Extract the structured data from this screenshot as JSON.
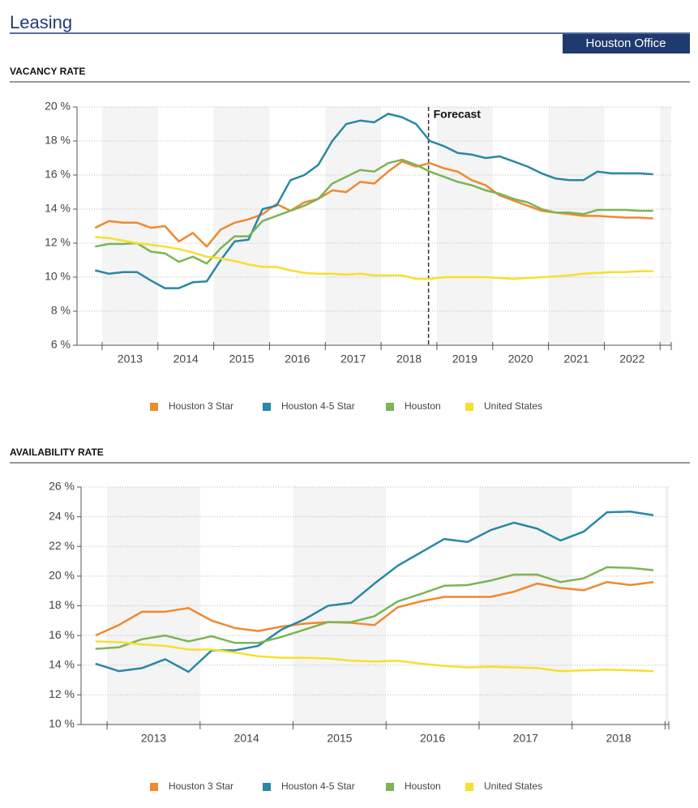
{
  "header": {
    "title": "Leasing",
    "badge": "Houston Office"
  },
  "chart_data": [
    {
      "type": "line",
      "title": "VACANCY RATE",
      "x": [
        2012.875,
        2013.125,
        2013.375,
        2013.625,
        2013.875,
        2014.125,
        2014.375,
        2014.625,
        2014.875,
        2015.125,
        2015.375,
        2015.625,
        2015.875,
        2016.125,
        2016.375,
        2016.625,
        2016.875,
        2017.125,
        2017.375,
        2017.625,
        2017.875,
        2018.125,
        2018.375,
        2018.625,
        2018.875,
        2019.125,
        2019.375,
        2019.625,
        2019.875,
        2020.125,
        2020.375,
        2020.625,
        2020.875,
        2021.125,
        2021.375,
        2021.625,
        2021.875,
        2022.125,
        2022.375,
        2022.625,
        2022.875
      ],
      "xlim": [
        2012.55,
        2023.2
      ],
      "xticks": [
        {
          "value": 2013.5,
          "label": "2013"
        },
        {
          "value": 2014.5,
          "label": "2014"
        },
        {
          "value": 2015.5,
          "label": "2015"
        },
        {
          "value": 2016.5,
          "label": "2016"
        },
        {
          "value": 2017.5,
          "label": "2017"
        },
        {
          "value": 2018.5,
          "label": "2018"
        },
        {
          "value": 2019.5,
          "label": "2019"
        },
        {
          "value": 2020.5,
          "label": "2020"
        },
        {
          "value": 2021.5,
          "label": "2021"
        },
        {
          "value": 2022.5,
          "label": "2022"
        }
      ],
      "ylim": [
        6,
        20
      ],
      "yticks": [
        {
          "value": 6,
          "label": "6 %"
        },
        {
          "value": 8,
          "label": "8 %"
        },
        {
          "value": 10,
          "label": "10 %"
        },
        {
          "value": 12,
          "label": "12 %"
        },
        {
          "value": 14,
          "label": "14 %"
        },
        {
          "value": 16,
          "label": "16 %"
        },
        {
          "value": 18,
          "label": "18 %"
        },
        {
          "value": 20,
          "label": "20 %"
        }
      ],
      "grid": true,
      "annotations": [
        {
          "text": "Forecast",
          "x": 2018.85
        }
      ],
      "series": [
        {
          "name": "Houston 3 Star",
          "color": "#f0892f",
          "values": [
            12.9,
            13.3,
            13.2,
            13.2,
            12.9,
            13.0,
            12.1,
            12.6,
            11.8,
            12.8,
            13.2,
            13.4,
            13.7,
            14.3,
            13.9,
            14.4,
            14.6,
            15.1,
            15.0,
            15.6,
            15.5,
            16.2,
            16.8,
            16.5,
            16.7,
            16.4,
            16.2,
            15.7,
            15.4,
            14.8,
            14.5,
            14.2,
            13.9,
            13.8,
            13.7,
            13.6,
            13.6,
            13.55,
            13.5,
            13.5,
            13.45
          ]
        },
        {
          "name": "Houston 4-5 Star",
          "color": "#2a87a5",
          "values": [
            10.4,
            10.2,
            10.3,
            10.3,
            9.8,
            9.35,
            9.35,
            9.7,
            9.75,
            11.0,
            12.1,
            12.2,
            14.0,
            14.2,
            15.7,
            16.0,
            16.6,
            18.0,
            19.0,
            19.2,
            19.1,
            19.6,
            19.4,
            19.0,
            18.0,
            17.7,
            17.3,
            17.2,
            17.0,
            17.1,
            16.8,
            16.5,
            16.1,
            15.8,
            15.7,
            15.7,
            16.2,
            16.1,
            16.1,
            16.1,
            16.05
          ]
        },
        {
          "name": "Houston",
          "color": "#7db456",
          "values": [
            11.8,
            11.95,
            11.95,
            12.0,
            11.5,
            11.4,
            10.9,
            11.2,
            10.8,
            11.7,
            12.4,
            12.4,
            13.3,
            13.6,
            13.9,
            14.2,
            14.6,
            15.5,
            15.9,
            16.3,
            16.2,
            16.7,
            16.9,
            16.6,
            16.2,
            15.9,
            15.6,
            15.4,
            15.1,
            14.9,
            14.6,
            14.4,
            14.0,
            13.8,
            13.8,
            13.7,
            13.95,
            13.95,
            13.95,
            13.9,
            13.9
          ]
        },
        {
          "name": "United States",
          "color": "#f6e02c",
          "values": [
            12.35,
            12.3,
            12.15,
            12.0,
            11.9,
            11.8,
            11.65,
            11.45,
            11.2,
            11.1,
            10.95,
            10.75,
            10.6,
            10.6,
            10.4,
            10.25,
            10.2,
            10.2,
            10.15,
            10.2,
            10.1,
            10.1,
            10.1,
            9.9,
            9.9,
            10.0,
            10.0,
            10.0,
            10.0,
            9.95,
            9.9,
            9.95,
            10.0,
            10.05,
            10.1,
            10.2,
            10.25,
            10.3,
            10.3,
            10.35,
            10.35
          ]
        }
      ]
    },
    {
      "type": "line",
      "title": "AVAILABILITY RATE",
      "x": [
        2012.875,
        2013.125,
        2013.375,
        2013.625,
        2013.875,
        2014.125,
        2014.375,
        2014.625,
        2014.875,
        2015.125,
        2015.375,
        2015.625,
        2015.875,
        2016.125,
        2016.375,
        2016.625,
        2016.875,
        2017.125,
        2017.375,
        2017.625,
        2017.875,
        2018.125,
        2018.375,
        2018.625,
        2018.875
      ],
      "xlim": [
        2012.72,
        2019.04
      ],
      "xticks": [
        {
          "value": 2013.5,
          "label": "2013"
        },
        {
          "value": 2014.5,
          "label": "2014"
        },
        {
          "value": 2015.5,
          "label": "2015"
        },
        {
          "value": 2016.5,
          "label": "2016"
        },
        {
          "value": 2017.5,
          "label": "2017"
        },
        {
          "value": 2018.5,
          "label": "2018"
        }
      ],
      "ylim": [
        10,
        26
      ],
      "yticks": [
        {
          "value": 10,
          "label": "10 %"
        },
        {
          "value": 12,
          "label": "12 %"
        },
        {
          "value": 14,
          "label": "14 %"
        },
        {
          "value": 16,
          "label": "16 %"
        },
        {
          "value": 18,
          "label": "18 %"
        },
        {
          "value": 20,
          "label": "20 %"
        },
        {
          "value": 22,
          "label": "22 %"
        },
        {
          "value": 24,
          "label": "24 %"
        },
        {
          "value": 26,
          "label": "26 %"
        }
      ],
      "grid": true,
      "series": [
        {
          "name": "Houston 3 Star",
          "color": "#f0892f",
          "values": [
            16.0,
            16.7,
            17.6,
            17.6,
            17.85,
            17.0,
            16.5,
            16.3,
            16.6,
            16.8,
            16.9,
            16.85,
            16.7,
            17.9,
            18.3,
            18.6,
            18.6,
            18.6,
            18.95,
            19.5,
            19.2,
            19.05,
            19.6,
            19.4,
            19.6
          ]
        },
        {
          "name": "Houston 4-5 Star",
          "color": "#2a87a5",
          "values": [
            14.1,
            13.6,
            13.8,
            14.4,
            13.55,
            15.0,
            15.0,
            15.3,
            16.4,
            17.1,
            18.0,
            18.2,
            19.5,
            20.7,
            21.6,
            22.5,
            22.3,
            23.1,
            23.6,
            23.2,
            22.4,
            23.0,
            24.3,
            24.35,
            24.1
          ]
        },
        {
          "name": "Houston",
          "color": "#7db456",
          "values": [
            15.1,
            15.2,
            15.75,
            16.0,
            15.6,
            15.95,
            15.5,
            15.5,
            15.9,
            16.4,
            16.9,
            16.9,
            17.3,
            18.3,
            18.8,
            19.35,
            19.4,
            19.7,
            20.1,
            20.1,
            19.6,
            19.85,
            20.6,
            20.55,
            20.4
          ]
        },
        {
          "name": "United States",
          "color": "#f6e02c",
          "values": [
            15.6,
            15.55,
            15.4,
            15.3,
            15.05,
            15.05,
            14.85,
            14.6,
            14.5,
            14.5,
            14.45,
            14.3,
            14.25,
            14.3,
            14.1,
            13.95,
            13.85,
            13.9,
            13.85,
            13.8,
            13.6,
            13.65,
            13.7,
            13.65,
            13.6
          ]
        }
      ]
    }
  ]
}
